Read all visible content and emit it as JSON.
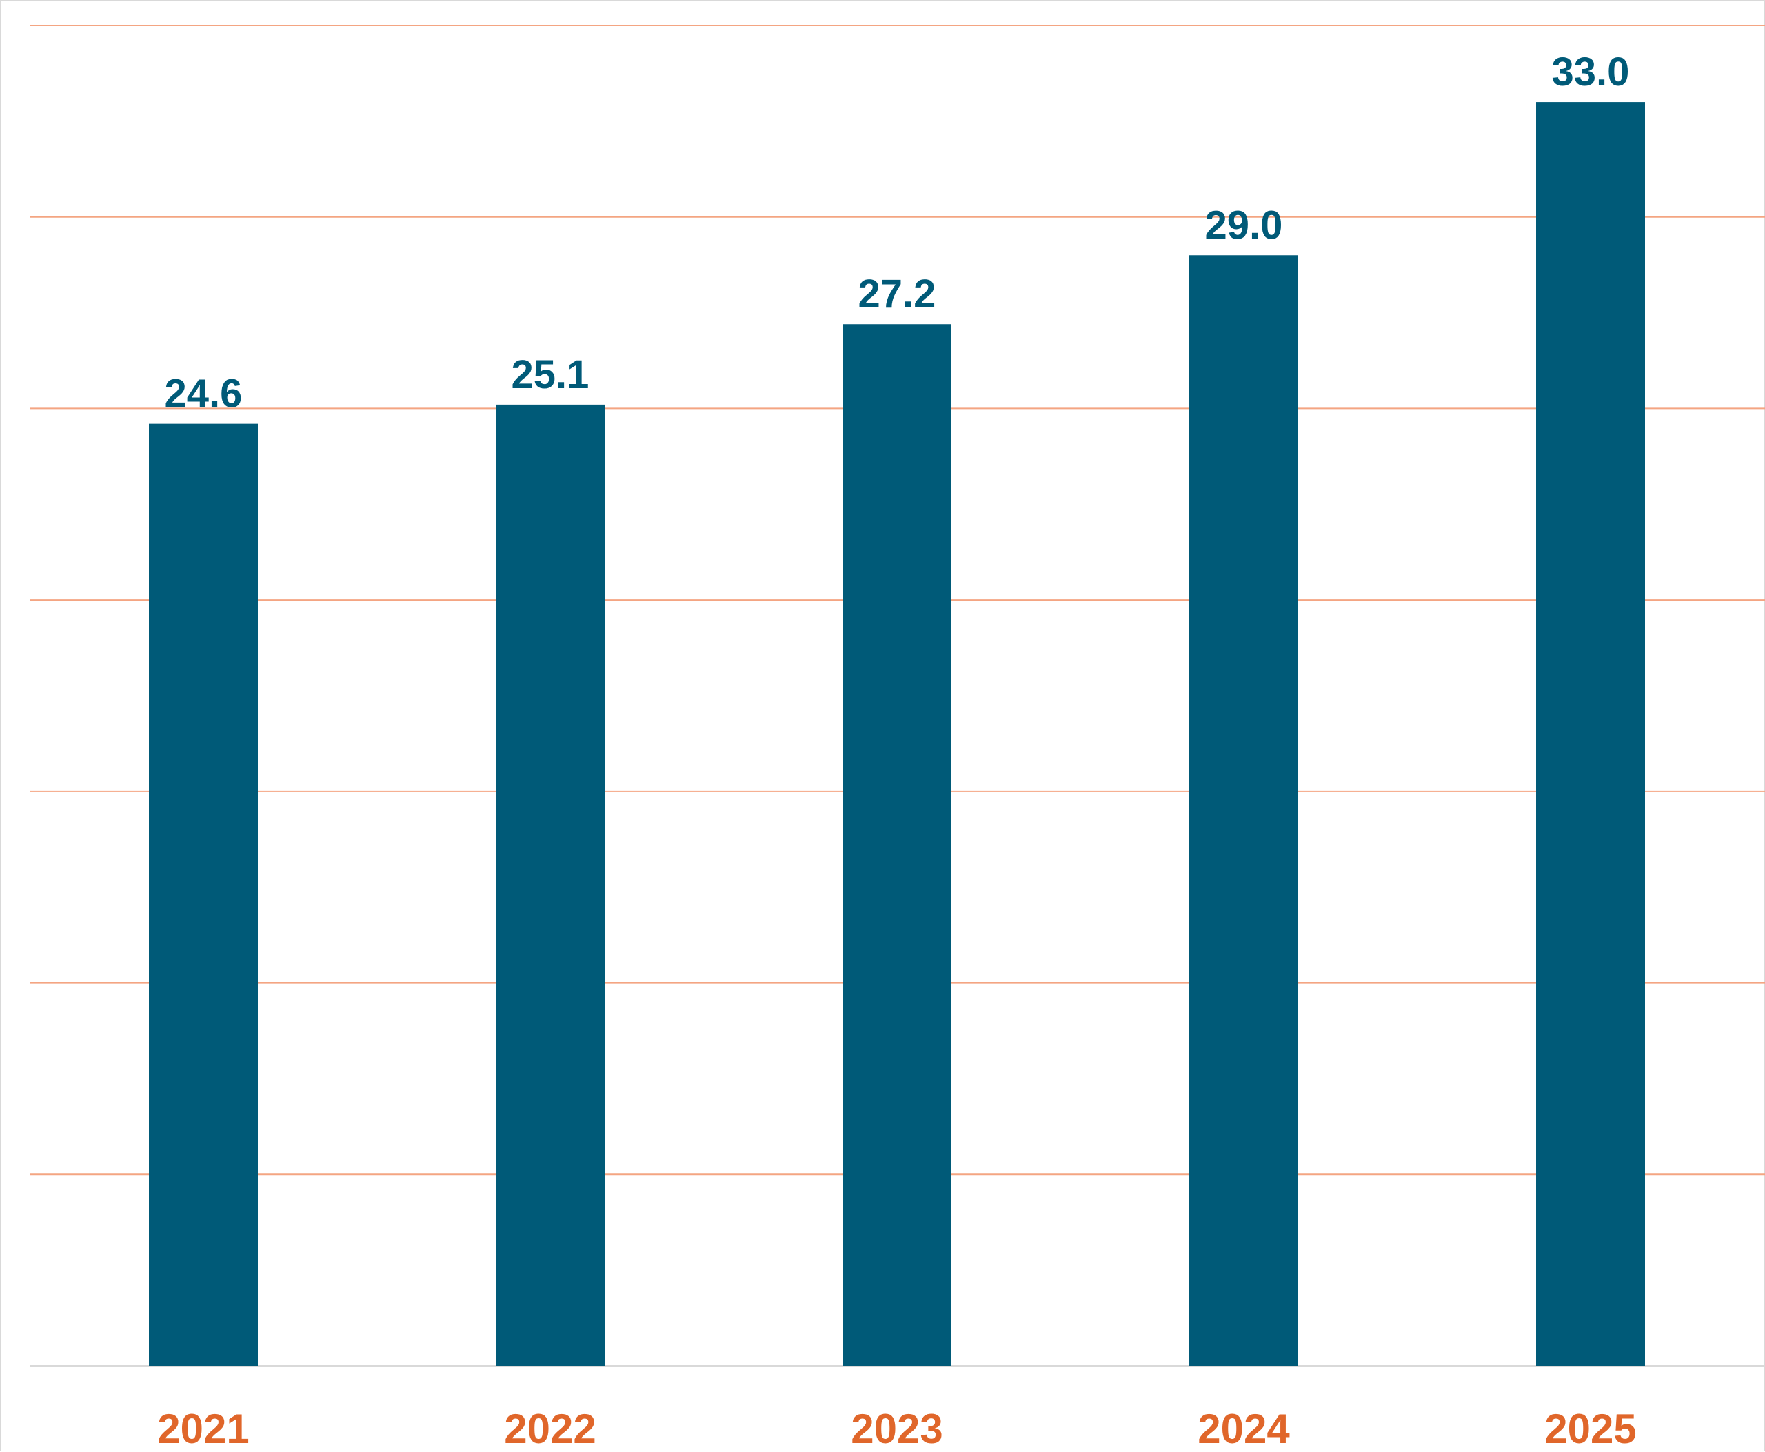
{
  "chart_data": {
    "type": "bar",
    "categories": [
      "2021",
      "2022",
      "2023",
      "2024",
      "2025"
    ],
    "values": [
      24.6,
      25.1,
      27.2,
      29.0,
      33.0
    ],
    "data_labels": [
      "24.6",
      "25.1",
      "27.2",
      "29.0",
      "33.0"
    ],
    "ylim": [
      0,
      35
    ],
    "grid": true,
    "legend": "none",
    "colors": {
      "bar": "#005a78",
      "data_label": "#005a78",
      "tick_label": "#e0662a",
      "gridline": "#f4a582",
      "baseline": "#d9d9d9"
    }
  }
}
